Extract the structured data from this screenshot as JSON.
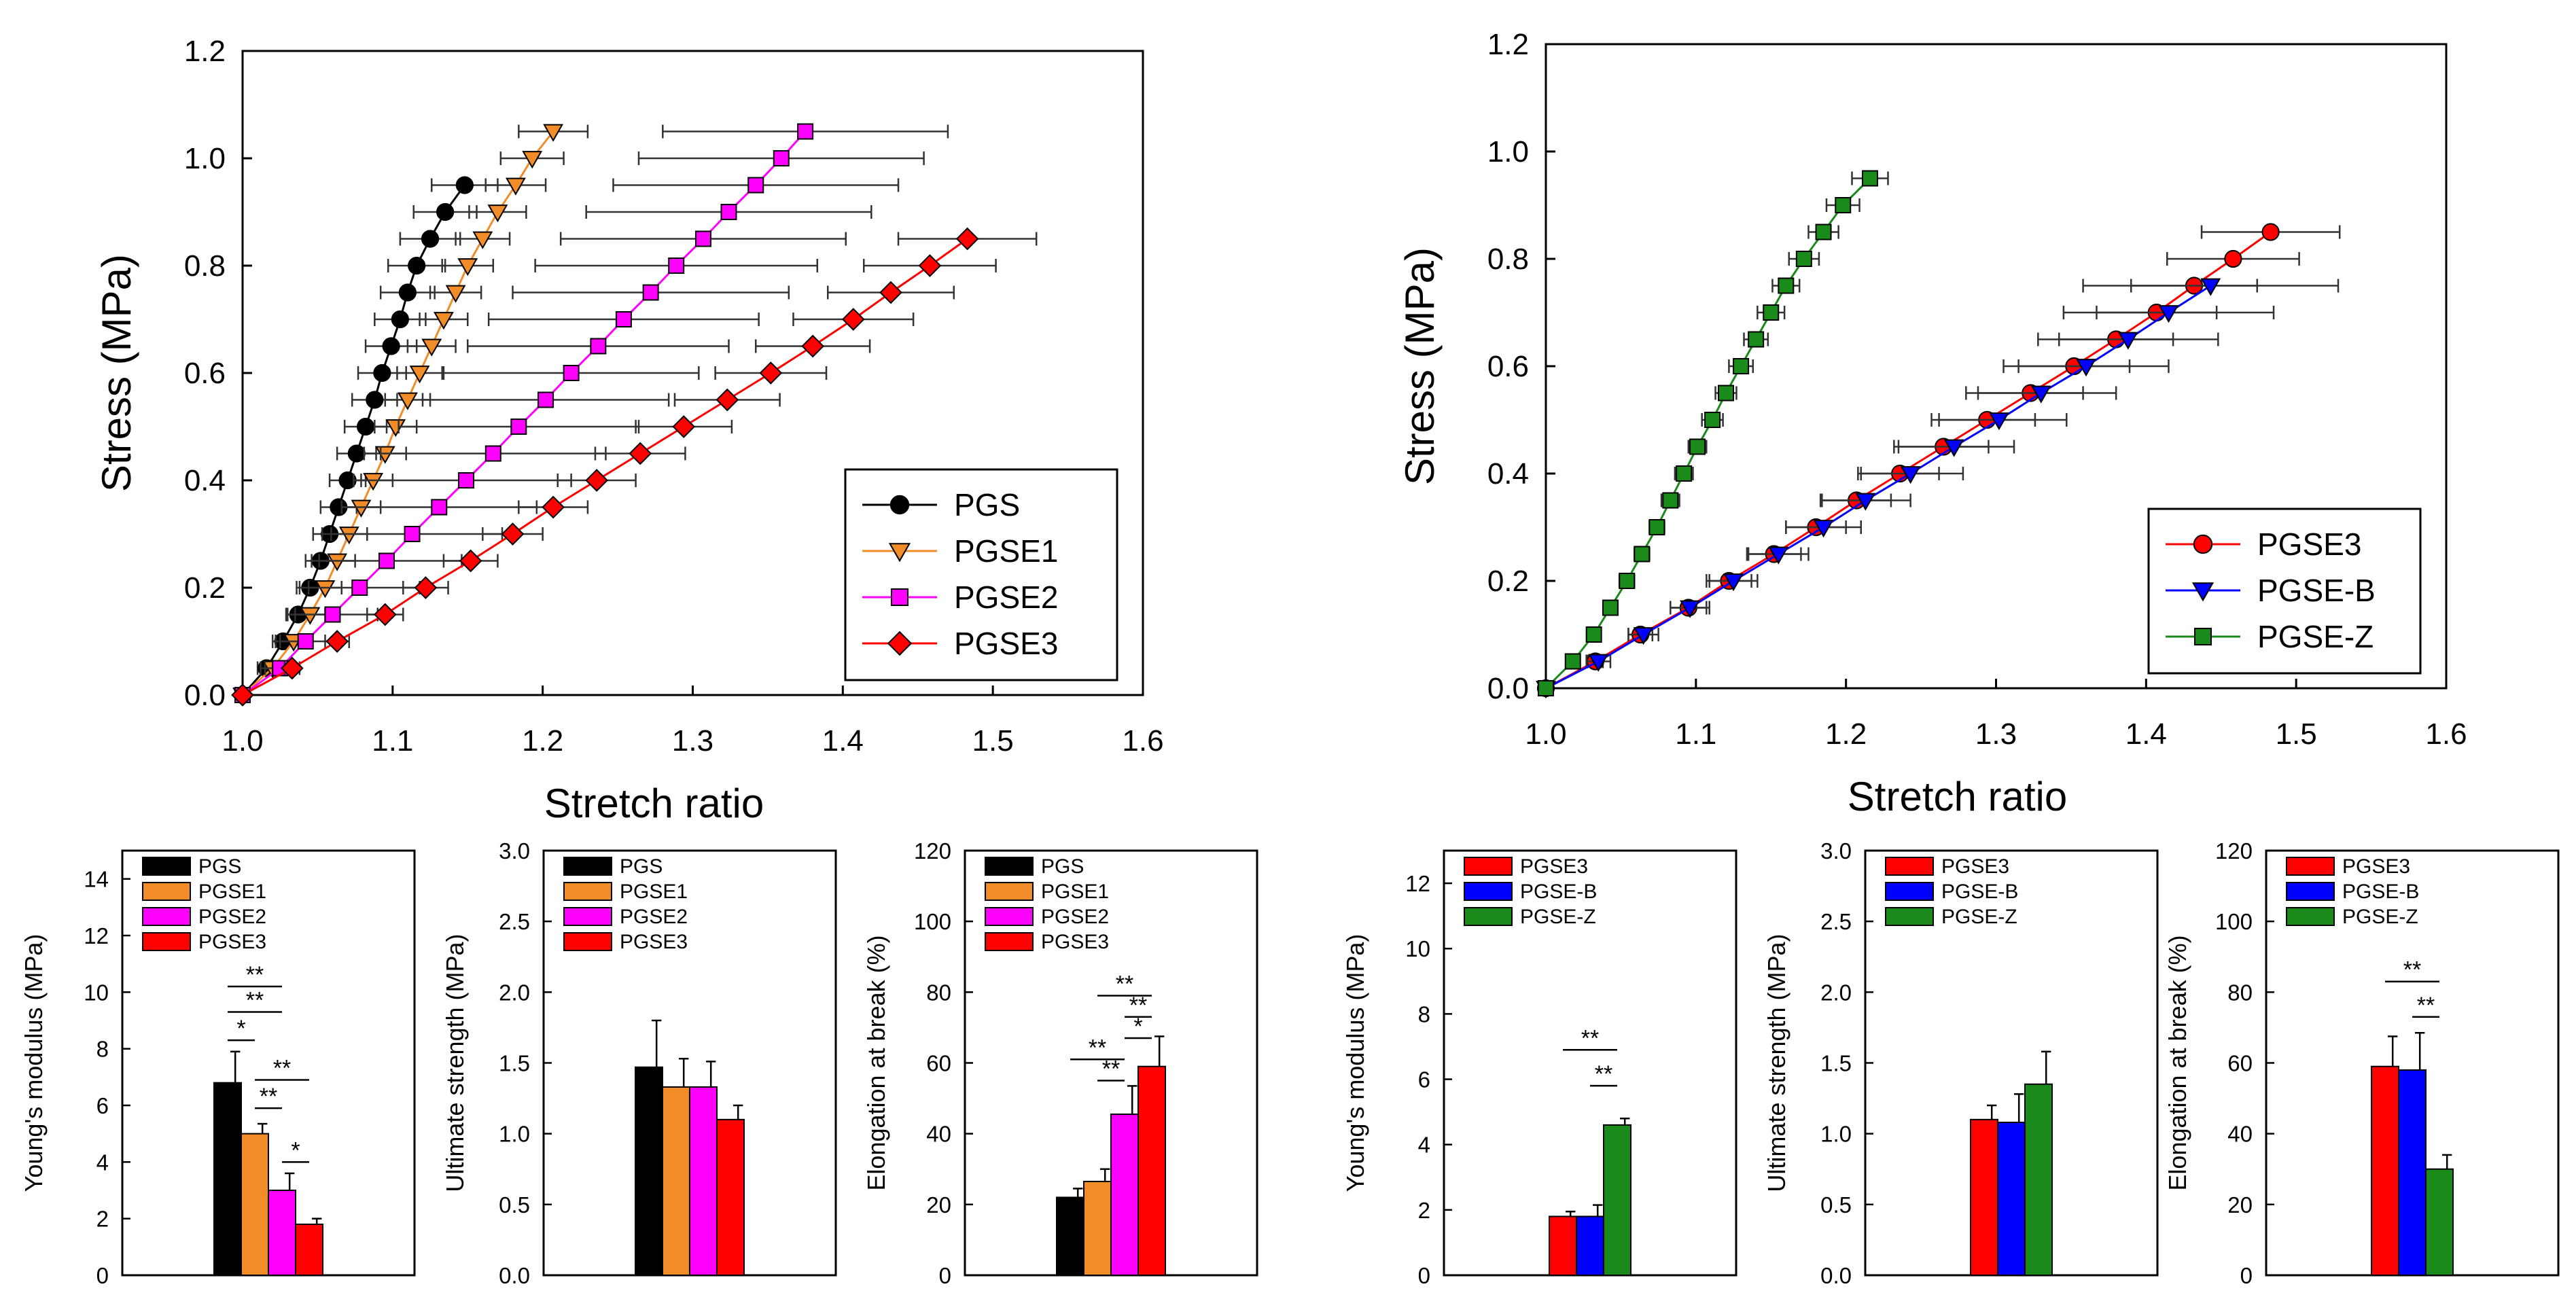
{
  "chart_data": [
    {
      "type": "line",
      "id": "ss1",
      "xlabel": "Stretch ratio",
      "ylabel": "Stress (MPa)",
      "xlim": [
        1.0,
        1.6
      ],
      "ylim": [
        0.0,
        1.2
      ],
      "xticks": [
        "1.0",
        "1.1",
        "1.2",
        "1.3",
        "1.4",
        "1.5",
        "1.6"
      ],
      "yticks": [
        "0.0",
        "0.2",
        "0.4",
        "0.6",
        "0.8",
        "1.0",
        "1.2"
      ],
      "legend_position": "bottom-right",
      "series": [
        {
          "name": "PGS",
          "color": "#000000",
          "marker": "circle",
          "y": [
            0.0,
            0.05,
            0.1,
            0.15,
            0.2,
            0.25,
            0.3,
            0.35,
            0.4,
            0.45,
            0.5,
            0.55,
            0.6,
            0.65,
            0.7,
            0.75,
            0.8,
            0.85,
            0.9,
            0.95
          ],
          "x": [
            1.0,
            1.016,
            1.027,
            1.037,
            1.045,
            1.052,
            1.058,
            1.064,
            1.07,
            1.076,
            1.082,
            1.088,
            1.093,
            1.099,
            1.105,
            1.11,
            1.116,
            1.125,
            1.135,
            1.148
          ],
          "xerr": [
            0,
            0.006,
            0.007,
            0.008,
            0.009,
            0.01,
            0.011,
            0.012,
            0.012,
            0.013,
            0.014,
            0.015,
            0.016,
            0.017,
            0.017,
            0.018,
            0.019,
            0.02,
            0.021,
            0.022
          ]
        },
        {
          "name": "PGSE1",
          "color": "#f28c28",
          "marker": "triangle-down",
          "y": [
            0.0,
            0.05,
            0.1,
            0.15,
            0.2,
            0.25,
            0.3,
            0.35,
            0.4,
            0.45,
            0.5,
            0.55,
            0.6,
            0.65,
            0.7,
            0.75,
            0.8,
            0.85,
            0.9,
            0.95,
            1.0,
            1.05
          ],
          "x": [
            1.0,
            1.02,
            1.034,
            1.045,
            1.055,
            1.063,
            1.071,
            1.079,
            1.087,
            1.095,
            1.102,
            1.11,
            1.118,
            1.126,
            1.134,
            1.142,
            1.15,
            1.16,
            1.17,
            1.182,
            1.193,
            1.207
          ],
          "xerr": [
            0,
            0.008,
            0.009,
            0.01,
            0.011,
            0.012,
            0.012,
            0.013,
            0.013,
            0.014,
            0.014,
            0.015,
            0.015,
            0.016,
            0.016,
            0.017,
            0.017,
            0.018,
            0.019,
            0.02,
            0.021,
            0.023
          ]
        },
        {
          "name": "PGSE2",
          "color": "#ff00ff",
          "marker": "square",
          "y": [
            0.0,
            0.05,
            0.1,
            0.15,
            0.2,
            0.25,
            0.3,
            0.35,
            0.4,
            0.45,
            0.5,
            0.55,
            0.6,
            0.65,
            0.7,
            0.75,
            0.8,
            0.85,
            0.9,
            0.95,
            1.0,
            1.05
          ],
          "x": [
            1.0,
            1.025,
            1.042,
            1.06,
            1.078,
            1.096,
            1.113,
            1.131,
            1.149,
            1.167,
            1.184,
            1.202,
            1.219,
            1.237,
            1.254,
            1.272,
            1.289,
            1.307,
            1.324,
            1.342,
            1.359,
            1.375
          ],
          "xerr": [
            0,
            0.01,
            0.02,
            0.03,
            0.04,
            0.05,
            0.06,
            0.065,
            0.07,
            0.075,
            0.08,
            0.082,
            0.085,
            0.087,
            0.09,
            0.092,
            0.094,
            0.095,
            0.095,
            0.095,
            0.095,
            0.095
          ]
        },
        {
          "name": "PGSE3",
          "color": "#ff0000",
          "marker": "diamond",
          "y": [
            0.0,
            0.05,
            0.1,
            0.15,
            0.2,
            0.25,
            0.3,
            0.35,
            0.4,
            0.45,
            0.5,
            0.55,
            0.6,
            0.65,
            0.7,
            0.75,
            0.8,
            0.85
          ],
          "x": [
            1.0,
            1.033,
            1.063,
            1.095,
            1.122,
            1.152,
            1.18,
            1.207,
            1.236,
            1.265,
            1.294,
            1.323,
            1.352,
            1.38,
            1.407,
            1.432,
            1.458,
            1.483
          ],
          "xerr": [
            0,
            0.005,
            0.008,
            0.012,
            0.015,
            0.018,
            0.02,
            0.023,
            0.026,
            0.03,
            0.032,
            0.035,
            0.037,
            0.038,
            0.04,
            0.042,
            0.044,
            0.046
          ]
        }
      ]
    },
    {
      "type": "line",
      "id": "ss2",
      "xlabel": "Stretch ratio",
      "ylabel": "Stress (MPa)",
      "xlim": [
        1.0,
        1.6
      ],
      "ylim": [
        0.0,
        1.2
      ],
      "xticks": [
        "1.0",
        "1.1",
        "1.2",
        "1.3",
        "1.4",
        "1.5",
        "1.6"
      ],
      "yticks": [
        "0.0",
        "0.2",
        "0.4",
        "0.6",
        "0.8",
        "1.0",
        "1.2"
      ],
      "legend_position": "bottom-right",
      "series": [
        {
          "name": "PGSE3",
          "color": "#ff0000",
          "marker": "circle",
          "y": [
            0.0,
            0.05,
            0.1,
            0.15,
            0.2,
            0.25,
            0.3,
            0.35,
            0.4,
            0.45,
            0.5,
            0.55,
            0.6,
            0.65,
            0.7,
            0.75,
            0.8,
            0.85
          ],
          "x": [
            1.0,
            1.033,
            1.063,
            1.095,
            1.122,
            1.152,
            1.18,
            1.207,
            1.236,
            1.265,
            1.294,
            1.323,
            1.352,
            1.38,
            1.407,
            1.432,
            1.458,
            1.483
          ],
          "xerr": [
            0,
            0.005,
            0.008,
            0.012,
            0.015,
            0.018,
            0.02,
            0.023,
            0.026,
            0.03,
            0.032,
            0.035,
            0.037,
            0.038,
            0.04,
            0.042,
            0.044,
            0.046
          ]
        },
        {
          "name": "PGSE-B",
          "color": "#0000ff",
          "marker": "triangle-down",
          "y": [
            0.0,
            0.05,
            0.1,
            0.15,
            0.2,
            0.25,
            0.3,
            0.35,
            0.4,
            0.45,
            0.5,
            0.55,
            0.6,
            0.65,
            0.7,
            0.75
          ],
          "x": [
            1.0,
            1.035,
            1.065,
            1.096,
            1.125,
            1.155,
            1.185,
            1.213,
            1.243,
            1.272,
            1.302,
            1.33,
            1.36,
            1.388,
            1.415,
            1.443
          ],
          "xerr": [
            0,
            0.008,
            0.01,
            0.013,
            0.016,
            0.02,
            0.025,
            0.03,
            0.035,
            0.04,
            0.045,
            0.05,
            0.055,
            0.06,
            0.07,
            0.085
          ]
        },
        {
          "name": "PGSE-Z",
          "color": "#1a8a1a",
          "marker": "square",
          "y": [
            0.0,
            0.05,
            0.1,
            0.15,
            0.2,
            0.25,
            0.3,
            0.35,
            0.4,
            0.45,
            0.5,
            0.55,
            0.6,
            0.65,
            0.7,
            0.75,
            0.8,
            0.85,
            0.9,
            0.95
          ],
          "x": [
            1.0,
            1.018,
            1.032,
            1.043,
            1.054,
            1.064,
            1.074,
            1.083,
            1.092,
            1.101,
            1.111,
            1.12,
            1.13,
            1.14,
            1.15,
            1.16,
            1.172,
            1.185,
            1.198,
            1.216
          ],
          "xerr": [
            0,
            0.003,
            0.004,
            0.004,
            0.005,
            0.005,
            0.005,
            0.006,
            0.006,
            0.006,
            0.007,
            0.007,
            0.008,
            0.008,
            0.009,
            0.009,
            0.01,
            0.01,
            0.011,
            0.012
          ]
        }
      ]
    },
    {
      "type": "bar",
      "id": "b1",
      "ylabel": "Young's modulus (MPa)",
      "ylim": [
        0,
        15
      ],
      "yticks": [
        "0",
        "2",
        "4",
        "6",
        "8",
        "10",
        "12",
        "14"
      ],
      "series": [
        {
          "name": "PGS",
          "color": "#000000",
          "value": 6.8,
          "err": 1.1
        },
        {
          "name": "PGSE1",
          "color": "#f28c28",
          "value": 5.0,
          "err": 0.35
        },
        {
          "name": "PGSE2",
          "color": "#ff00ff",
          "value": 3.0,
          "err": 0.6
        },
        {
          "name": "PGSE3",
          "color": "#ff0000",
          "value": 1.8,
          "err": 0.2
        }
      ],
      "significance": [
        {
          "label": "**",
          "from": 0,
          "to": 2,
          "y": 10.2
        },
        {
          "label": "**",
          "from": 0,
          "to": 2,
          "y": 9.3
        },
        {
          "label": "*",
          "from": 0,
          "to": 1,
          "y": 8.3
        },
        {
          "label": "**",
          "from": 1,
          "to": 3,
          "y": 6.9
        },
        {
          "label": "**",
          "from": 1,
          "to": 2,
          "y": 5.9
        },
        {
          "label": "*",
          "from": 2,
          "to": 3,
          "y": 4.0
        }
      ]
    },
    {
      "type": "bar",
      "id": "b2",
      "ylabel": "Ultimate strength (MPa)",
      "ylim": [
        0,
        3.0
      ],
      "yticks": [
        "0.0",
        "0.5",
        "1.0",
        "1.5",
        "2.0",
        "2.5",
        "3.0"
      ],
      "series": [
        {
          "name": "PGS",
          "color": "#000000",
          "value": 1.47,
          "err": 0.33
        },
        {
          "name": "PGSE1",
          "color": "#f28c28",
          "value": 1.33,
          "err": 0.2
        },
        {
          "name": "PGSE2",
          "color": "#ff00ff",
          "value": 1.33,
          "err": 0.18
        },
        {
          "name": "PGSE3",
          "color": "#ff0000",
          "value": 1.1,
          "err": 0.1
        }
      ],
      "significance": []
    },
    {
      "type": "bar",
      "id": "b3",
      "ylabel": "Elongation at break (%)",
      "ylim": [
        0,
        120
      ],
      "yticks": [
        "0",
        "20",
        "40",
        "60",
        "80",
        "100",
        "120"
      ],
      "series": [
        {
          "name": "PGS",
          "color": "#000000",
          "value": 22,
          "err": 2.5
        },
        {
          "name": "PGSE1",
          "color": "#f28c28",
          "value": 26.5,
          "err": 3.5
        },
        {
          "name": "PGSE2",
          "color": "#ff00ff",
          "value": 45.5,
          "err": 8
        },
        {
          "name": "PGSE3",
          "color": "#ff0000",
          "value": 59,
          "err": 8.5
        }
      ],
      "significance": [
        {
          "label": "**",
          "from": 1,
          "to": 3,
          "y": 79
        },
        {
          "label": "**",
          "from": 2,
          "to": 3,
          "y": 73
        },
        {
          "label": "*",
          "from": 2,
          "to": 3,
          "y": 67
        },
        {
          "label": "**",
          "from": 0,
          "to": 2,
          "y": 61
        },
        {
          "label": "**",
          "from": 1,
          "to": 2,
          "y": 55
        }
      ]
    },
    {
      "type": "bar",
      "id": "b4",
      "ylabel": "Young's modulus (MPa)",
      "ylim": [
        0,
        13
      ],
      "yticks": [
        "0",
        "2",
        "4",
        "6",
        "8",
        "10",
        "12"
      ],
      "series": [
        {
          "name": "PGSE3",
          "color": "#ff0000",
          "value": 1.8,
          "err": 0.15
        },
        {
          "name": "PGSE-B",
          "color": "#0000ff",
          "value": 1.8,
          "err": 0.35
        },
        {
          "name": "PGSE-Z",
          "color": "#1a8a1a",
          "value": 4.6,
          "err": 0.2
        }
      ],
      "significance": [
        {
          "label": "**",
          "from": 0,
          "to": 2,
          "y": 6.9
        },
        {
          "label": "**",
          "from": 1,
          "to": 2,
          "y": 5.8
        }
      ]
    },
    {
      "type": "bar",
      "id": "b5",
      "ylabel": "Ultimate strength (MPa)",
      "ylim": [
        0,
        3.0
      ],
      "yticks": [
        "0.0",
        "0.5",
        "1.0",
        "1.5",
        "2.0",
        "2.5",
        "3.0"
      ],
      "series": [
        {
          "name": "PGSE3",
          "color": "#ff0000",
          "value": 1.1,
          "err": 0.1
        },
        {
          "name": "PGSE-B",
          "color": "#0000ff",
          "value": 1.08,
          "err": 0.2
        },
        {
          "name": "PGSE-Z",
          "color": "#1a8a1a",
          "value": 1.35,
          "err": 0.23
        }
      ],
      "significance": []
    },
    {
      "type": "bar",
      "id": "b6",
      "ylabel": "Elongation at break (%)",
      "ylim": [
        0,
        120
      ],
      "yticks": [
        "0",
        "20",
        "40",
        "60",
        "80",
        "100",
        "120"
      ],
      "series": [
        {
          "name": "PGSE3",
          "color": "#ff0000",
          "value": 59,
          "err": 8.5
        },
        {
          "name": "PGSE-B",
          "color": "#0000ff",
          "value": 58,
          "err": 10.5
        },
        {
          "name": "PGSE-Z",
          "color": "#1a8a1a",
          "value": 30,
          "err": 4
        }
      ],
      "significance": [
        {
          "label": "**",
          "from": 0,
          "to": 2,
          "y": 83
        },
        {
          "label": "**",
          "from": 1,
          "to": 2,
          "y": 73
        }
      ]
    }
  ]
}
